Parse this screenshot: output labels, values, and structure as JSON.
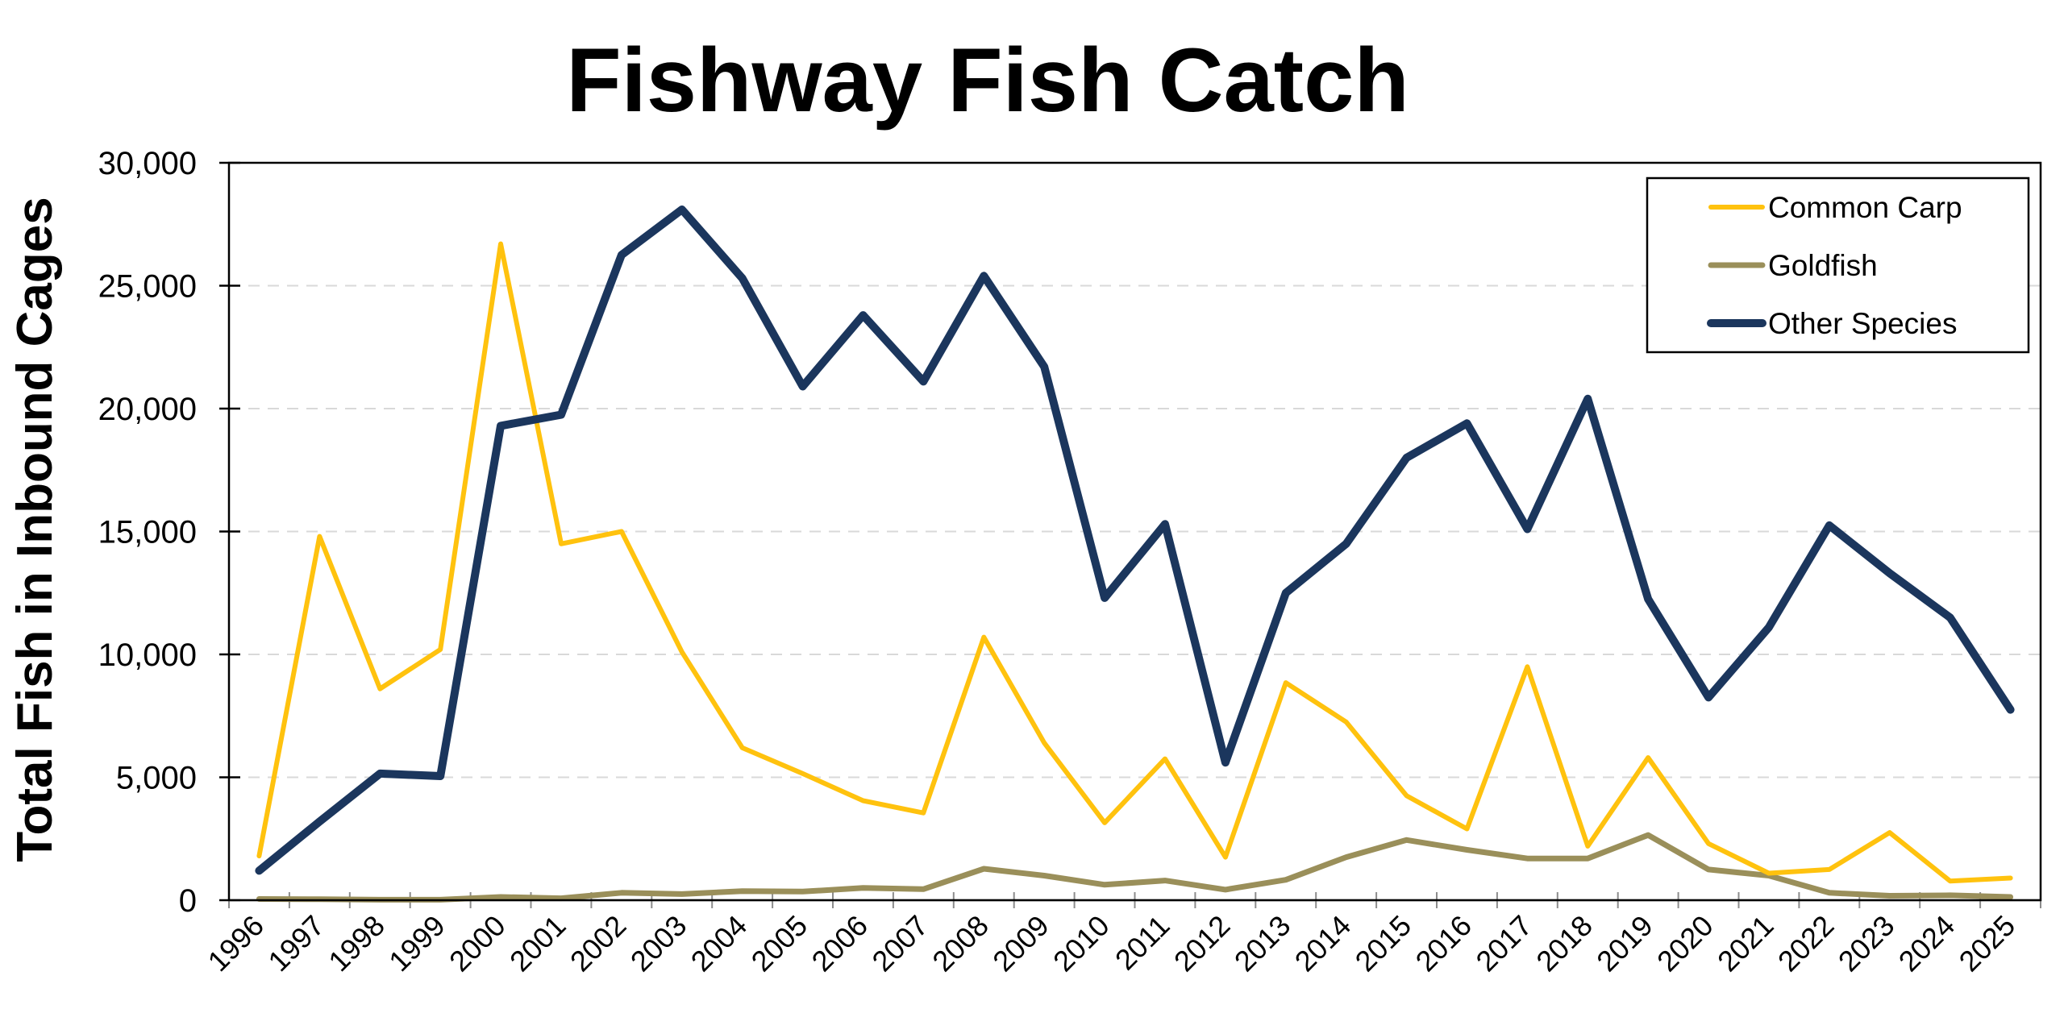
{
  "chart_data": {
    "type": "line",
    "title": "Fishway Fish Catch",
    "xlabel": "",
    "ylabel": "Total Fish in Inbound Cages",
    "ylim": [
      0,
      30000
    ],
    "yticks": [
      0,
      5000,
      10000,
      15000,
      20000,
      25000,
      30000
    ],
    "ytick_labels": [
      "0",
      "5,000",
      "10,000",
      "15,000",
      "20,000",
      "25,000",
      "30,000"
    ],
    "grid": "horizontal dashed",
    "legend_position": "top-right (inside plot)",
    "categories": [
      "1996",
      "1997",
      "1998",
      "1999",
      "2000",
      "2001",
      "2002",
      "2003",
      "2004",
      "2005",
      "2006",
      "2007",
      "2008",
      "2009",
      "2010",
      "2011",
      "2012",
      "2013",
      "2014",
      "2015",
      "2016",
      "2017",
      "2018",
      "2019",
      "2020",
      "2021",
      "2022",
      "2023",
      "2024",
      "2025"
    ],
    "series": [
      {
        "name": "Common Carp",
        "color": "#FFC20E",
        "line_width": 6,
        "values": [
          1800,
          14800,
          8600,
          10200,
          26700,
          14500,
          15000,
          10100,
          6200,
          5150,
          4050,
          3550,
          10700,
          6400,
          3150,
          5750,
          1750,
          8850,
          7250,
          4250,
          2900,
          9500,
          2200,
          5800,
          2300,
          1100,
          1250,
          2750,
          780,
          900
        ]
      },
      {
        "name": "Goldfish",
        "color": "#9A8F5A",
        "line_width": 7,
        "values": [
          50,
          40,
          20,
          20,
          130,
          80,
          300,
          250,
          370,
          350,
          500,
          450,
          1280,
          1000,
          630,
          800,
          430,
          830,
          1750,
          2450,
          2050,
          1700,
          1700,
          2650,
          1250,
          1000,
          300,
          180,
          200,
          130
        ]
      },
      {
        "name": "Other Species",
        "color": "#1B365D",
        "line_width": 10,
        "values": [
          1200,
          3200,
          5150,
          5050,
          19300,
          19750,
          26250,
          28100,
          25300,
          20900,
          23800,
          21100,
          25400,
          21700,
          12300,
          15300,
          5600,
          12500,
          14500,
          18000,
          19400,
          15100,
          20400,
          12250,
          8250,
          11100,
          15250,
          13300,
          11500,
          7750
        ]
      }
    ]
  },
  "legend": {
    "items": [
      {
        "label": "Common Carp",
        "color": "#FFC20E"
      },
      {
        "label": "Goldfish",
        "color": "#9A8F5A"
      },
      {
        "label": "Other Species",
        "color": "#1B365D"
      }
    ]
  }
}
